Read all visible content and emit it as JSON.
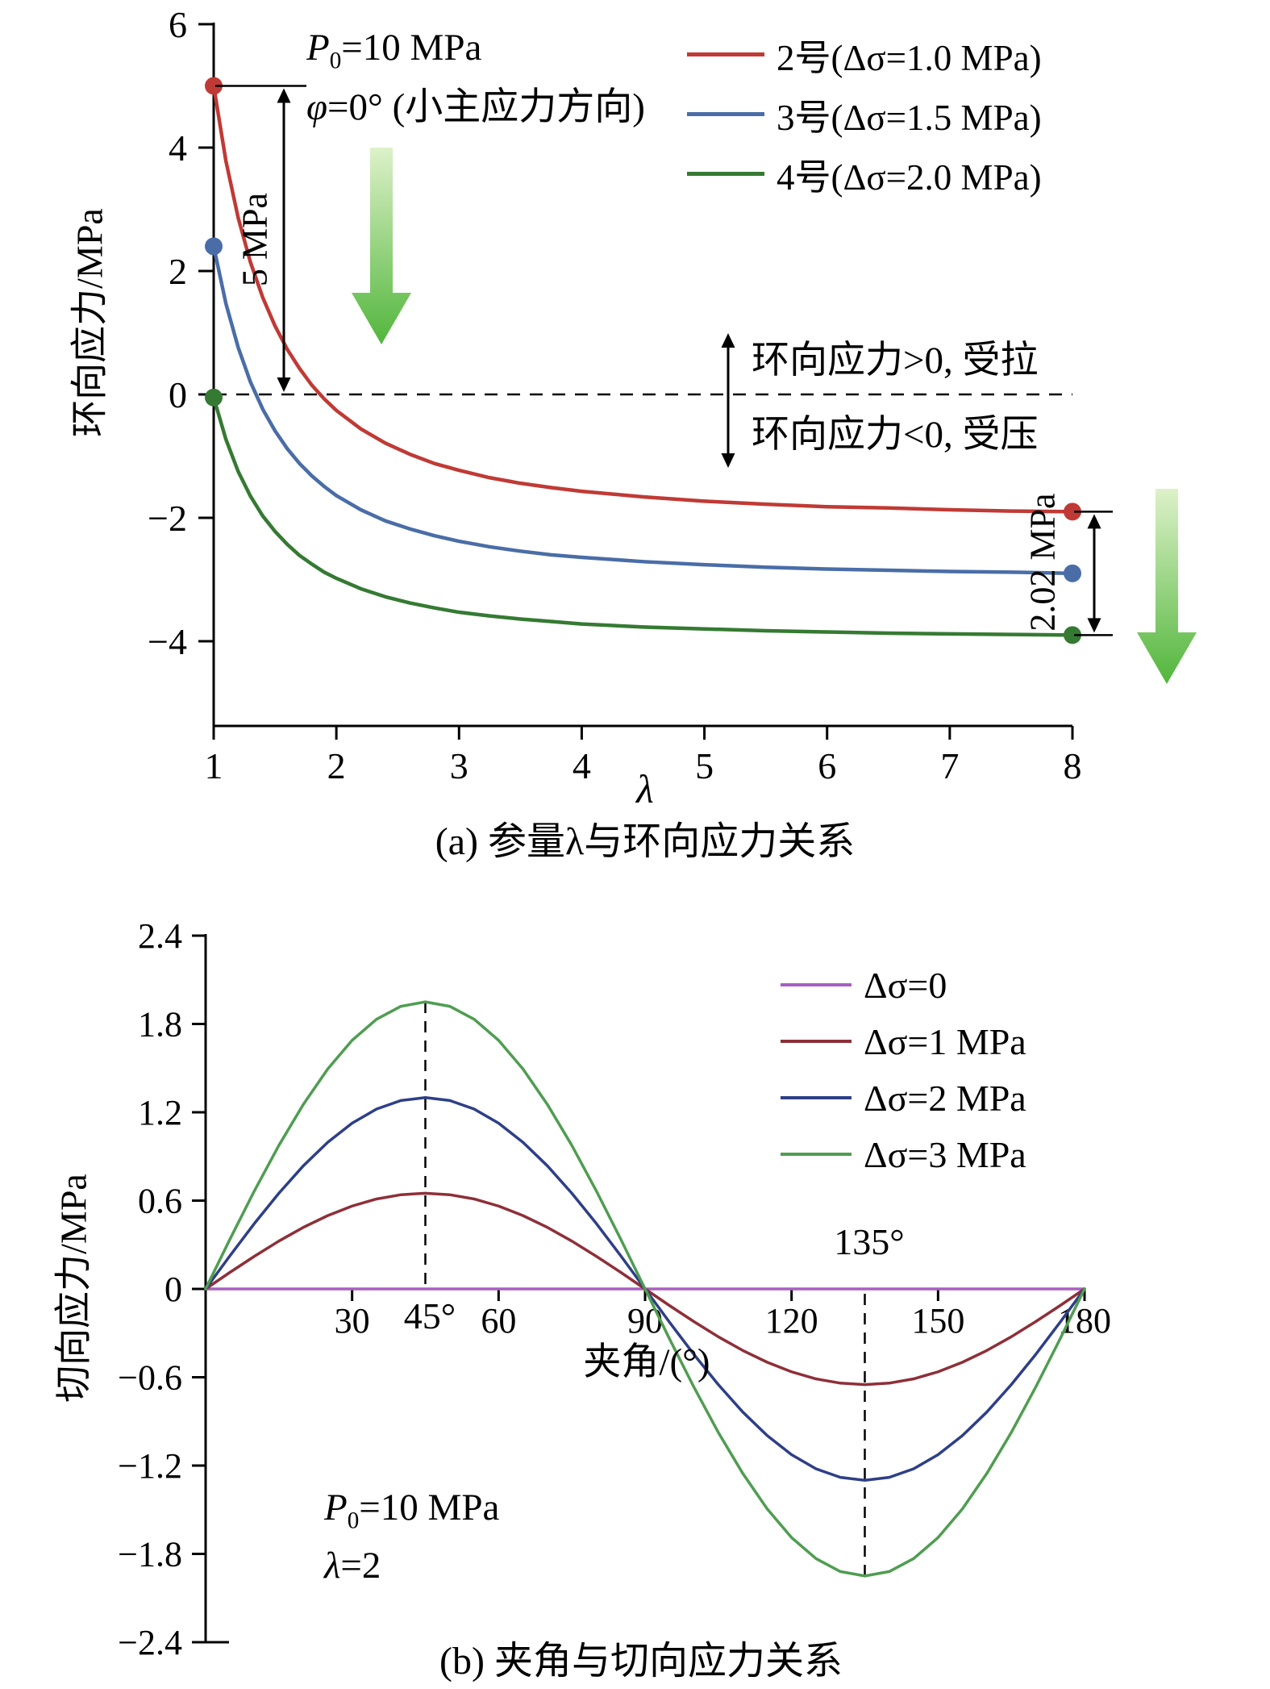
{
  "page": {
    "background": "#ffffff",
    "accent_arrow_gradient": [
      "#ddf1c9",
      "#52b63c"
    ]
  },
  "panel_a": {
    "caption": "(a) 参量λ与环向应力关系",
    "y_axis_label": "环向应力/MPa",
    "x_axis_label": "λ",
    "p0": {
      "sym": "P",
      "sub": "0",
      "rest": "=10 MPa"
    },
    "phi": {
      "sym": "φ",
      "rest": "=0° (小主应力方向)"
    },
    "drop_label": "5 MPa",
    "tension_label": "环向应力>0, 受拉",
    "compression_label": "环向应力<0, 受压",
    "right_drop_label": "2.02 MPa"
  },
  "panel_b": {
    "caption": "(b) 夹角与切向应力关系",
    "y_axis_label": "切向应力/MPa",
    "x_axis_label": "夹角/(°)",
    "p0": {
      "sym": "P",
      "sub": "0",
      "rest": "=10 MPa"
    },
    "lambda": {
      "sym": "λ",
      "rest": "=2"
    },
    "guide_labels": {
      "deg45": "45°",
      "deg135": "135°"
    }
  },
  "chart_data": [
    {
      "type": "line",
      "title": "(a) 参量λ与环向应力关系",
      "xlabel": "λ",
      "ylabel": "环向应力/MPa",
      "xlim": [
        1,
        8
      ],
      "ylim": [
        -4,
        6
      ],
      "grid": false,
      "legend_position": "top-right",
      "zero_line_dashed": true,
      "x_ticks": [
        1,
        2,
        3,
        4,
        5,
        6,
        7,
        8
      ],
      "x_tick_labels": [
        "1",
        "2",
        "3",
        "4",
        "5",
        "6",
        "7",
        "8"
      ],
      "y_ticks": [
        6,
        4,
        2,
        0,
        -2,
        -4
      ],
      "y_tick_labels": [
        "6",
        "4",
        "2",
        "0",
        "−2",
        "−4"
      ],
      "x": [
        1,
        1.1,
        1.2,
        1.3,
        1.4,
        1.5,
        1.6,
        1.7,
        1.8,
        1.9,
        2,
        2.2,
        2.4,
        2.6,
        2.8,
        3,
        3.25,
        3.5,
        3.75,
        4,
        4.5,
        5,
        5.5,
        6,
        6.5,
        7,
        7.5,
        8
      ],
      "series": [
        {
          "name": "2号(Δσ=1.0 MPa)",
          "color": "#c03a35",
          "start": 5.0,
          "end": -1.9,
          "values": [
            5,
            3.78,
            2.86,
            2.14,
            1.57,
            1.11,
            0.73,
            0.42,
            0.15,
            -0.07,
            -0.26,
            -0.56,
            -0.79,
            -0.97,
            -1.12,
            -1.23,
            -1.35,
            -1.44,
            -1.51,
            -1.57,
            -1.66,
            -1.73,
            -1.78,
            -1.82,
            -1.84,
            -1.87,
            -1.89,
            -1.9
          ]
        },
        {
          "name": "3号(Δσ=1.5 MPa)",
          "color": "#4a6da7",
          "start": 2.4,
          "end": -2.9,
          "values": [
            2.4,
            1.47,
            0.76,
            0.2,
            -0.24,
            -0.59,
            -0.88,
            -1.12,
            -1.32,
            -1.49,
            -1.64,
            -1.87,
            -2.05,
            -2.18,
            -2.29,
            -2.38,
            -2.47,
            -2.54,
            -2.6,
            -2.64,
            -2.71,
            -2.76,
            -2.8,
            -2.83,
            -2.85,
            -2.87,
            -2.88,
            -2.9
          ]
        },
        {
          "name": "4号(Δσ=2.0 MPa)",
          "color": "#357a32",
          "start": -0.05,
          "end": -3.9,
          "values": [
            -0.05,
            -0.73,
            -1.25,
            -1.65,
            -1.97,
            -2.22,
            -2.43,
            -2.61,
            -2.75,
            -2.88,
            -2.98,
            -3.15,
            -3.28,
            -3.38,
            -3.46,
            -3.53,
            -3.59,
            -3.64,
            -3.68,
            -3.72,
            -3.77,
            -3.8,
            -3.83,
            -3.85,
            -3.87,
            -3.88,
            -3.89,
            -3.9
          ]
        }
      ],
      "annotations": [
        "P0=10 MPa",
        "φ=0° (小主应力方向)",
        "5 MPa",
        "环向应力>0, 受拉",
        "环向应力<0, 受压",
        "2.02 MPa"
      ]
    },
    {
      "type": "line",
      "title": "(b) 夹角与切向应力关系",
      "xlabel": "夹角/(°)",
      "ylabel": "切向应力/MPa",
      "xlim": [
        0,
        180
      ],
      "ylim": [
        -2.4,
        2.4
      ],
      "grid": false,
      "legend_position": "top-right",
      "dashed_guides_x": [
        45,
        135
      ],
      "x_ticks": [
        30,
        60,
        90,
        120,
        150,
        180
      ],
      "x_tick_labels": [
        "30",
        "60",
        "90",
        "120",
        "150",
        "180"
      ],
      "y_ticks": [
        2.4,
        1.8,
        1.2,
        0.6,
        0,
        -0.6,
        -1.2,
        -1.8,
        -2.4
      ],
      "y_tick_labels": [
        "2.4",
        "1.8",
        "1.2",
        "0.6",
        "0",
        "−0.6",
        "−1.2",
        "−1.8",
        "−2.4"
      ],
      "x": [
        0,
        5,
        10,
        15,
        20,
        25,
        30,
        35,
        40,
        45,
        50,
        55,
        60,
        65,
        70,
        75,
        80,
        85,
        90,
        95,
        100,
        105,
        110,
        115,
        120,
        125,
        130,
        135,
        140,
        145,
        150,
        155,
        160,
        165,
        170,
        175,
        180
      ],
      "series": [
        {
          "name": "Δσ=0",
          "color": "#a95fc0",
          "amplitude": 0,
          "values": [
            0,
            0,
            0,
            0,
            0,
            0,
            0,
            0,
            0,
            0,
            0,
            0,
            0,
            0,
            0,
            0,
            0,
            0,
            0,
            0,
            0,
            0,
            0,
            0,
            0,
            0,
            0,
            0,
            0,
            0,
            0,
            0,
            0,
            0,
            0,
            0,
            0
          ]
        },
        {
          "name": "Δσ=1 MPa",
          "color": "#8e2f38",
          "amplitude": 0.65,
          "values": [
            0,
            0.113,
            0.222,
            0.325,
            0.418,
            0.498,
            0.563,
            0.611,
            0.64,
            0.65,
            0.64,
            0.611,
            0.563,
            0.498,
            0.418,
            0.325,
            0.222,
            0.113,
            0,
            -0.113,
            -0.222,
            -0.325,
            -0.418,
            -0.498,
            -0.563,
            -0.611,
            -0.64,
            -0.65,
            -0.64,
            -0.611,
            -0.563,
            -0.498,
            -0.418,
            -0.325,
            -0.222,
            -0.113,
            0
          ]
        },
        {
          "name": "Δσ=2 MPa",
          "color": "#2e3f87",
          "amplitude": 1.3,
          "values": [
            0,
            0.226,
            0.445,
            0.65,
            0.836,
            0.996,
            1.126,
            1.222,
            1.28,
            1.3,
            1.28,
            1.222,
            1.126,
            0.996,
            0.836,
            0.65,
            0.445,
            0.226,
            0,
            -0.226,
            -0.445,
            -0.65,
            -0.836,
            -0.996,
            -1.126,
            -1.222,
            -1.28,
            -1.3,
            -1.28,
            -1.222,
            -1.126,
            -0.996,
            -0.836,
            -0.65,
            -0.445,
            -0.226,
            0
          ]
        },
        {
          "name": "Δσ=3 MPa",
          "color": "#4f9d50",
          "amplitude": 1.95,
          "values": [
            0,
            0.339,
            0.667,
            0.975,
            1.253,
            1.494,
            1.689,
            1.832,
            1.92,
            1.95,
            1.92,
            1.832,
            1.689,
            1.494,
            1.253,
            0.975,
            0.667,
            0.339,
            0,
            -0.339,
            -0.667,
            -0.975,
            -1.253,
            -1.494,
            -1.689,
            -1.832,
            -1.92,
            -1.95,
            -1.92,
            -1.832,
            -1.689,
            -1.494,
            -1.253,
            -0.975,
            -0.667,
            -0.339,
            0
          ]
        }
      ],
      "annotations": [
        "135°",
        "45°",
        "P0=10 MPa",
        "λ=2"
      ]
    }
  ]
}
